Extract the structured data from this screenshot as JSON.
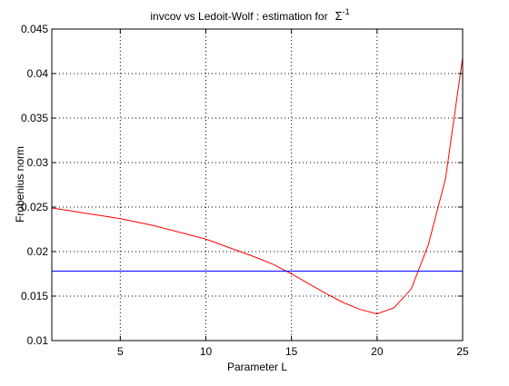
{
  "chart_data": {
    "type": "line",
    "title": "invcov vs Ledoit-Wolf : estimation for",
    "title_symbol": "Σ",
    "title_superscript": "-1",
    "xlabel": "Parameter L",
    "ylabel": "Frobenius norm",
    "xlim": [
      1,
      25
    ],
    "ylim": [
      0.01,
      0.045
    ],
    "xticks": [
      5,
      10,
      15,
      20,
      25
    ],
    "yticks": [
      0.01,
      0.015,
      0.02,
      0.025,
      0.03,
      0.035,
      0.04,
      0.045
    ],
    "ytick_labels": [
      "0.01",
      "0.015",
      "0.02",
      "0.025",
      "0.03",
      "0.035",
      "0.04",
      "0.045"
    ],
    "grid": true,
    "series": [
      {
        "color": "#ff0000",
        "x": [
          1,
          2,
          3,
          4,
          5,
          6,
          7,
          8,
          9,
          10,
          11,
          12,
          13,
          14,
          15,
          16,
          17,
          18,
          19,
          20,
          21,
          22,
          23,
          24,
          25
        ],
        "y": [
          0.0249,
          0.0246,
          0.0243,
          0.024,
          0.0237,
          0.0233,
          0.0229,
          0.0224,
          0.0219,
          0.0214,
          0.0207,
          0.02,
          0.0193,
          0.0185,
          0.0175,
          0.0164,
          0.0153,
          0.0143,
          0.0135,
          0.013,
          0.0137,
          0.0158,
          0.0208,
          0.0282,
          0.0418
        ]
      },
      {
        "color": "#0000ff",
        "x": [
          1,
          25
        ],
        "y": [
          0.0178,
          0.0178
        ]
      }
    ]
  }
}
